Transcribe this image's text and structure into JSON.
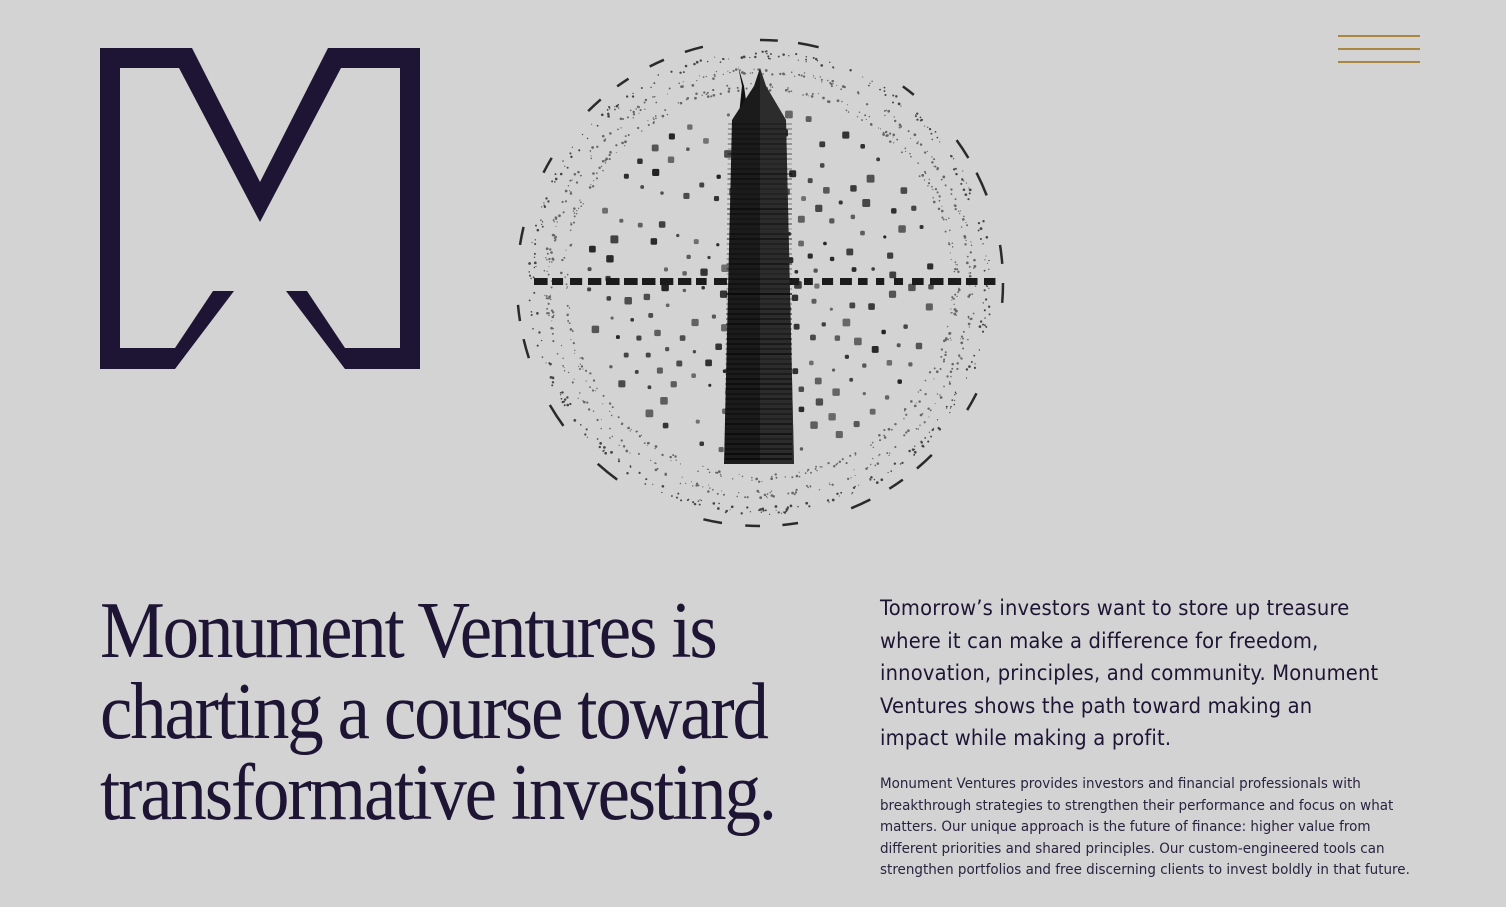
{
  "brand": {
    "logo_name": "monument-m-logo",
    "primary_color": "#1e1535",
    "accent_color": "#a9873f",
    "background_color": "#d3d3d3"
  },
  "header": {
    "menu_icon": "hamburger-menu-icon"
  },
  "hero": {
    "illustration": "monument-obelisk-compass-illustration",
    "headline_lines": [
      "Monument Ventures is",
      "charting a course toward",
      "transformative investing."
    ],
    "lead": "Tomorrow’s investors want to store up treasure where it can make a difference for freedom, innovation, principles, and community. Monument Ventures shows the path toward making an impact while making a profit.",
    "body": "Monument Ventures provides investors and financial professionals with breakthrough strategies to strengthen their performance and focus on what matters. Our unique approach is the future of finance: higher value from different priorities and shared principles. Our custom-engineered tools can strengthen portfolios and free discerning clients to invest boldly in that future."
  }
}
